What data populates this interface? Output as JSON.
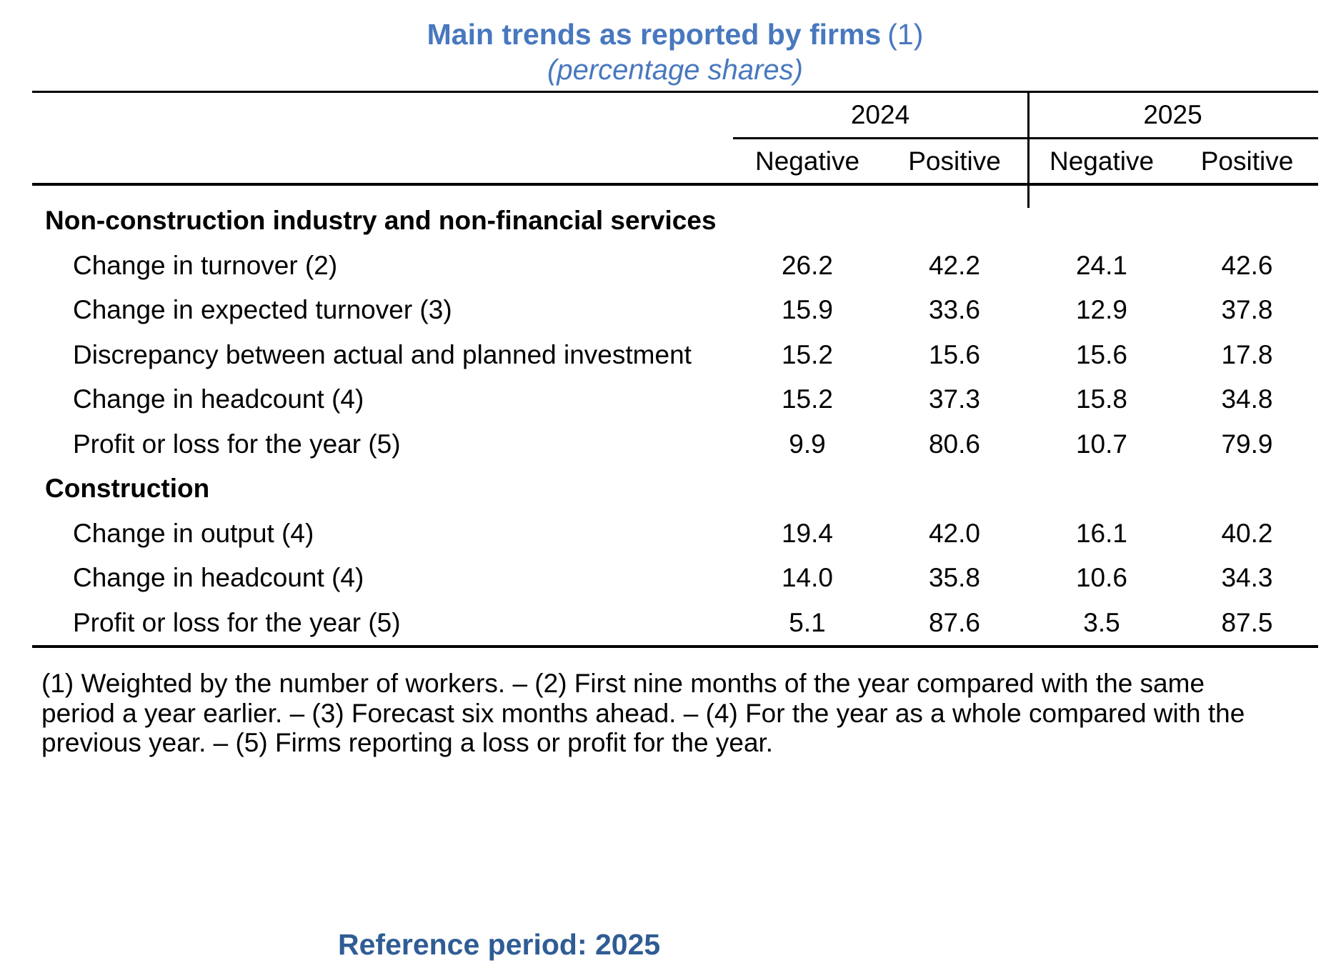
{
  "title": {
    "main": "Main trends as reported by firms",
    "note_ref": "(1)",
    "subtitle": "(percentage shares)"
  },
  "colors": {
    "title_blue": "#4878BE",
    "reference_blue": "#2F5C94",
    "rule_black": "#000000",
    "text_black": "#000000",
    "background": "#FFFFFF"
  },
  "table": {
    "year_groups": [
      "2024",
      "2025"
    ],
    "sub_columns": [
      "Negative",
      "Positive",
      "Negative",
      "Positive"
    ],
    "sections": [
      {
        "header": "Non-construction industry and non-financial services",
        "rows": [
          {
            "label": "Change in turnover (2)",
            "values": [
              "26.2",
              "42.2",
              "24.1",
              "42.6"
            ]
          },
          {
            "label": "Change in expected turnover (3)",
            "values": [
              "15.9",
              "33.6",
              "12.9",
              "37.8"
            ]
          },
          {
            "label": "Discrepancy between actual and planned investment",
            "values": [
              "15.2",
              "15.6",
              "15.6",
              "17.8"
            ]
          },
          {
            "label": "Change in headcount (4)",
            "values": [
              "15.2",
              "37.3",
              "15.8",
              "34.8"
            ]
          },
          {
            "label": "Profit or loss for the year (5)",
            "values": [
              "9.9",
              "80.6",
              "10.7",
              "79.9"
            ]
          }
        ]
      },
      {
        "header": "Construction",
        "rows": [
          {
            "label": "Change in output (4)",
            "values": [
              "19.4",
              "42.0",
              "16.1",
              "40.2"
            ]
          },
          {
            "label": "Change in headcount (4)",
            "values": [
              "14.0",
              "35.8",
              "10.6",
              "34.3"
            ]
          },
          {
            "label": "Profit or loss for the year (5)",
            "values": [
              "5.1",
              "87.6",
              "3.5",
              "87.5"
            ]
          }
        ]
      }
    ]
  },
  "footnote": {
    "lines": [
      "(1) Weighted by the number of workers. – (2) First nine months of the year compared with the same",
      "period a year earlier. – (3) Forecast six months ahead. – (4) For the year as a whole compared with the",
      "previous year. – (5) Firms reporting a loss or profit for the year."
    ]
  },
  "footer": {
    "reference_period": "Reference period: 2025"
  }
}
